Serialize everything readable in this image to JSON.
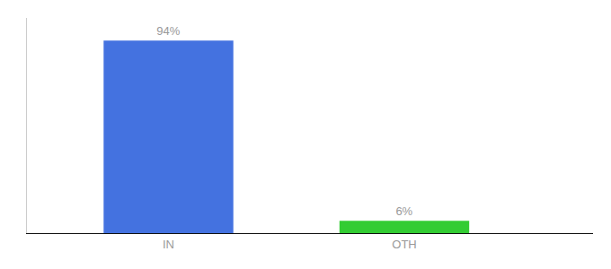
{
  "chart_data": {
    "type": "bar",
    "categories": [
      "IN",
      "OTH"
    ],
    "values": [
      94,
      6
    ],
    "value_labels": [
      "94%",
      "6%"
    ],
    "colors": [
      "#4472e0",
      "#33cc33"
    ],
    "ylim": [
      0,
      105
    ],
    "data_labels": true,
    "tick_labels": "x",
    "grid": false
  }
}
